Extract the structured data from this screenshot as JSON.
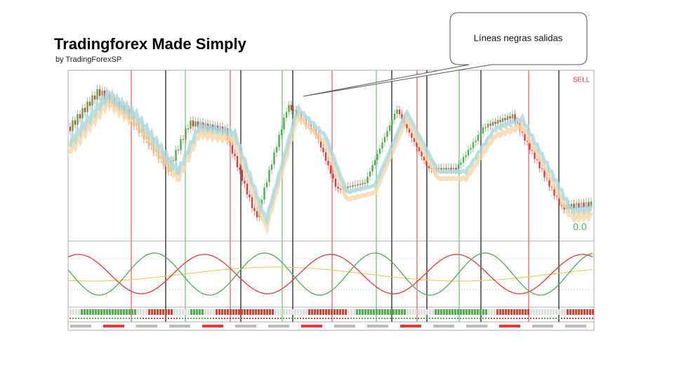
{
  "header": {
    "title": "Tradingforex Made Simply",
    "subtitle": "by TradingForexSP"
  },
  "callout": {
    "text": "Líneas negras salidas"
  },
  "chart": {
    "signal": "SELL",
    "reading": "0.0"
  }
}
